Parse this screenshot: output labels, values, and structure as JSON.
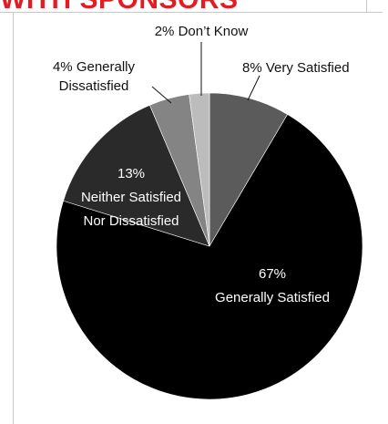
{
  "header": {
    "title": "WITH SPONSORS",
    "title_color": "#e31b23"
  },
  "chart_data": {
    "type": "pie",
    "title": "",
    "slices": [
      {
        "label_pct": "8%",
        "label_text": "Very Satisfied",
        "value": 8,
        "color": "#5b5b5b"
      },
      {
        "label_pct": "67%",
        "label_text": "Generally Satisfied",
        "value": 67,
        "color": "#000000"
      },
      {
        "label_pct": "13%",
        "label_text": "Neither Satisfied Nor Dissatisfied",
        "label_lines": [
          "Neither Satisfied",
          "Nor Dissatisfied"
        ],
        "value": 13,
        "color": "#2a2a2a"
      },
      {
        "label_pct": "4%",
        "label_text": "Generally Dissatisfied",
        "label_lines": [
          "Generally",
          "Dissatisfied"
        ],
        "value": 4,
        "color": "#848484"
      },
      {
        "label_pct": "2%",
        "label_text": "Don’t Know",
        "value": 2,
        "color": "#bcbcbc"
      }
    ],
    "labels": {
      "very_satisfied": "8% Very Satisfied",
      "generally_satisfied_pct": "67%",
      "generally_satisfied_text": "Generally Satisfied",
      "neither_pct": "13%",
      "neither_line1": "Neither Satisfied",
      "neither_line2": "Nor Dissatisfied",
      "dissatisfied_line1": "4% Generally",
      "dissatisfied_line2": "Dissatisfied",
      "dont_know": "2% Don’t Know"
    },
    "label_colors": {
      "outside": "#111111",
      "inside": "#ffffff"
    }
  }
}
